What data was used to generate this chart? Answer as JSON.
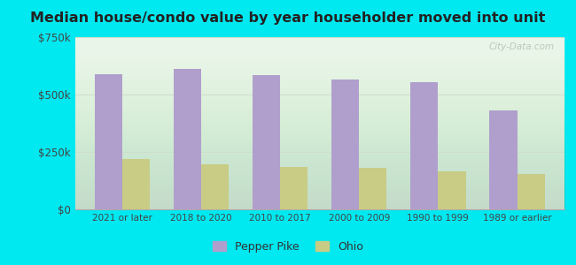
{
  "title": "Median house/condo value by year householder moved into unit",
  "categories": [
    "2021 or later",
    "2018 to 2020",
    "2010 to 2017",
    "2000 to 2009",
    "1990 to 1999",
    "1989 or earlier"
  ],
  "pepper_pike": [
    590000,
    610000,
    585000,
    565000,
    555000,
    430000
  ],
  "ohio": [
    220000,
    195000,
    185000,
    180000,
    165000,
    155000
  ],
  "pepper_pike_color": "#b09fcc",
  "ohio_color": "#c8cc84",
  "background_outer": "#00e8f0",
  "background_inner_top": "#edfded",
  "background_inner_bottom": "#d8ecd8",
  "ylim": [
    0,
    750000
  ],
  "yticks": [
    0,
    250000,
    500000,
    750000
  ],
  "ytick_labels": [
    "$0",
    "$250k",
    "$500k",
    "$750k"
  ],
  "bar_width": 0.35,
  "legend_pepper_pike": "Pepper Pike",
  "legend_ohio": "Ohio",
  "watermark": "City-Data.com"
}
